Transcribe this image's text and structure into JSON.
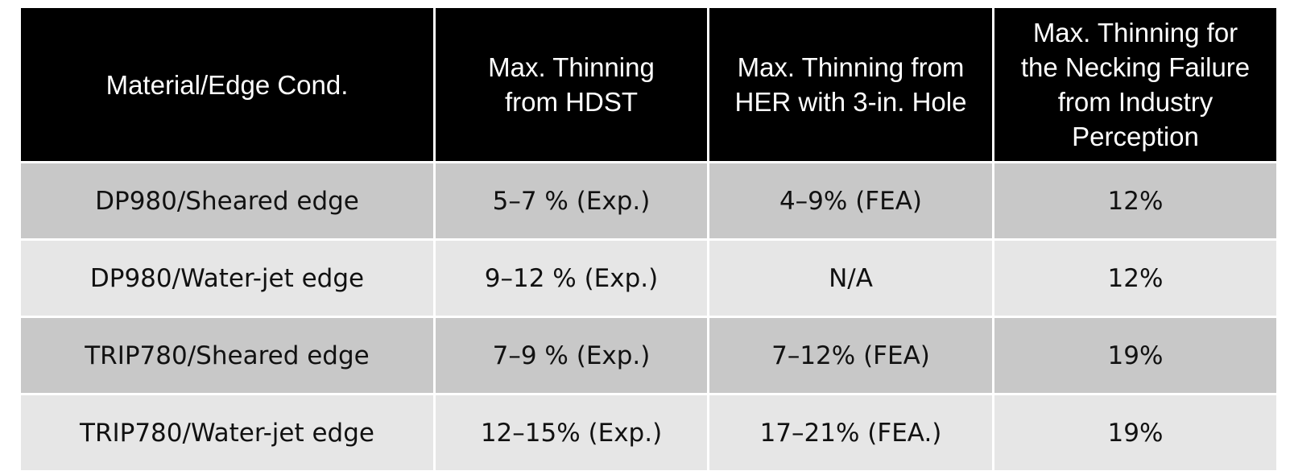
{
  "table": {
    "header": [
      [
        "Material/Edge Cond."
      ],
      [
        "Max. Thinning",
        "from HDST"
      ],
      [
        "Max.  Thinning from",
        "HER with 3-in. Hole"
      ],
      [
        "Max. Thinning for",
        "the Necking Failure",
        "from Industry",
        "Perception"
      ]
    ],
    "rows": [
      [
        "DP980/Sheared edge",
        "5–7 % (Exp.)",
        "4–9% (FEA)",
        "12%"
      ],
      [
        "DP980/Water-jet edge",
        "9–12 % (Exp.)",
        "N/A",
        "12%"
      ],
      [
        "TRIP780/Sheared edge",
        "7–9 % (Exp.)",
        "7–12% (FEA)",
        "19%"
      ],
      [
        "TRIP780/Water-jet edge",
        "12–15% (Exp.)",
        "17–21% (FEA.)",
        "19%"
      ]
    ]
  }
}
